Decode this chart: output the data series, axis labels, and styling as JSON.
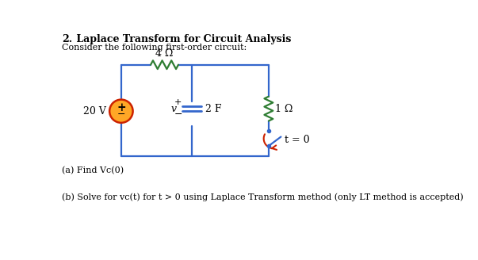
{
  "title_number": "2.",
  "title_text": " Laplace Transform for Circuit Analysis",
  "subtitle": "Consider the following first-order circuit:",
  "resistor_top_label": "4 Ω",
  "resistor_right_label": "1 Ω",
  "capacitor_label": "2 F",
  "source_label": "20 V",
  "switch_label": "t = 0",
  "v_label": "v",
  "plus_label": "+",
  "minus_label": "−",
  "part_a": "(a) Find Vc(0)",
  "part_b": "(b) Solve for vc(t) for t > 0 using Laplace Transform method (only LT method is accepted)",
  "circuit_color": "#3366CC",
  "resistor_color": "#2E7D32",
  "switch_arrow_color": "#CC2200",
  "source_fill": "#FFA726",
  "source_border": "#CC2200",
  "bg_color": "#ffffff",
  "text_color": "#000000",
  "title_fontsize": 9,
  "body_fontsize": 8,
  "circuit_lw": 1.6
}
